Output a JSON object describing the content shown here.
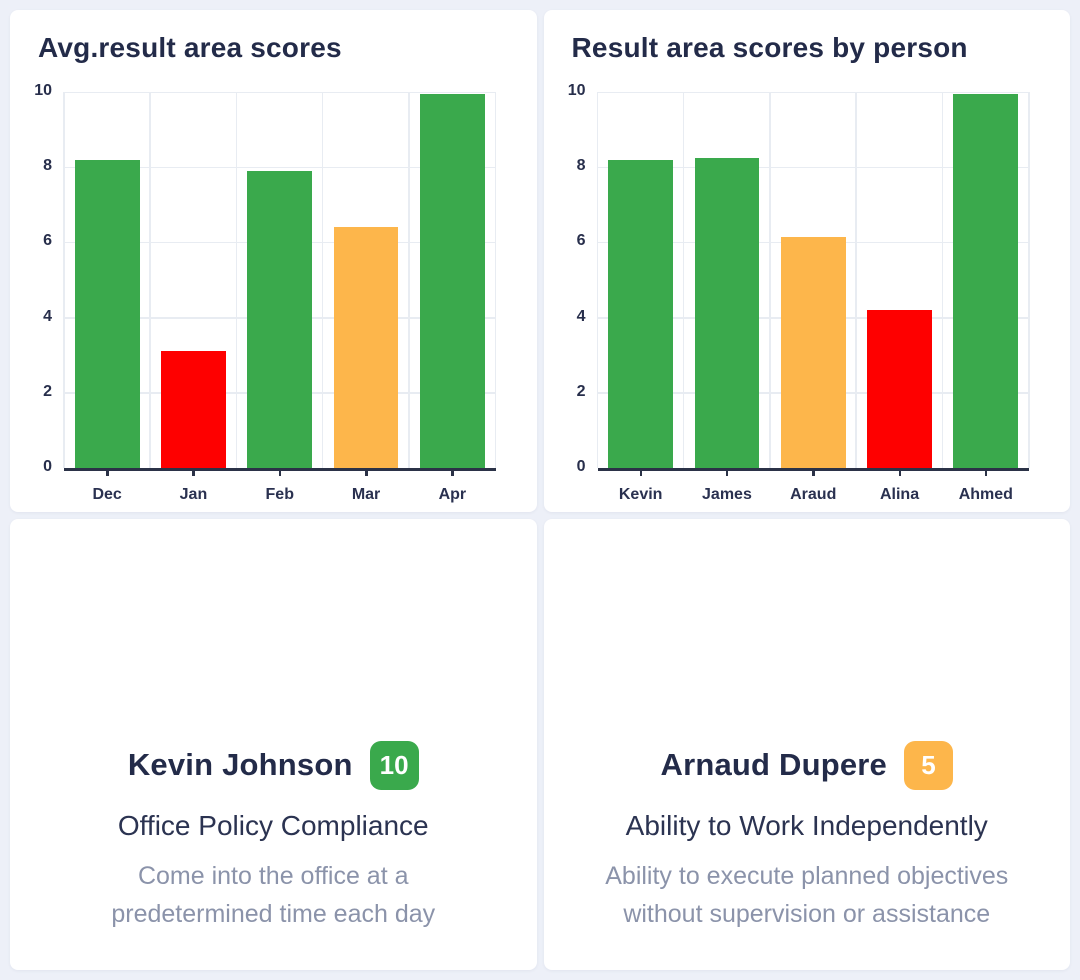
{
  "chart_data": [
    {
      "type": "bar",
      "title": "Avg.result area scores",
      "categories": [
        "Dec",
        "Jan",
        "Feb",
        "Mar",
        "Apr"
      ],
      "values": [
        8.2,
        3.1,
        7.9,
        6.4,
        9.95
      ],
      "bar_colors": [
        "#3aa94c",
        "#fe0000",
        "#3aa94c",
        "#fdb64b",
        "#3aa94c"
      ],
      "ylim": [
        0,
        10
      ],
      "yticks": [
        0,
        2,
        4,
        6,
        8,
        10
      ],
      "grid": true,
      "legend": false,
      "xlabel": "",
      "ylabel": ""
    },
    {
      "type": "bar",
      "title": "Result area scores by person",
      "categories": [
        "Kevin",
        "James",
        "Araud",
        "Alina",
        "Ahmed"
      ],
      "values": [
        8.2,
        8.25,
        6.15,
        4.2,
        9.95
      ],
      "bar_colors": [
        "#3aa94c",
        "#3aa94c",
        "#fdb64b",
        "#fe0000",
        "#3aa94c"
      ],
      "ylim": [
        0,
        10
      ],
      "yticks": [
        0,
        2,
        4,
        6,
        8,
        10
      ],
      "grid": true,
      "legend": false,
      "xlabel": "",
      "ylabel": ""
    }
  ],
  "highlights": [
    {
      "name": "Kevin Johnson",
      "score": "10",
      "score_color": "#3aa94c",
      "area": "Office Policy Compliance",
      "description": "Come into the office at a predetermined time each day"
    },
    {
      "name": "Arnaud Dupere",
      "score": "5",
      "score_color": "#fdb64b",
      "area": "Ability to Work Independently",
      "description": "Ability to execute planned objectives without supervision or assistance"
    }
  ],
  "colors": {
    "background": "#edf0f8",
    "card": "#ffffff",
    "heading_text": "#232b49",
    "axis": "#2b3247",
    "gridline": "#e8ecf2",
    "muted_text": "#8b93aa",
    "green": "#3aa94c",
    "red": "#fe0000",
    "orange": "#fdb64b"
  }
}
